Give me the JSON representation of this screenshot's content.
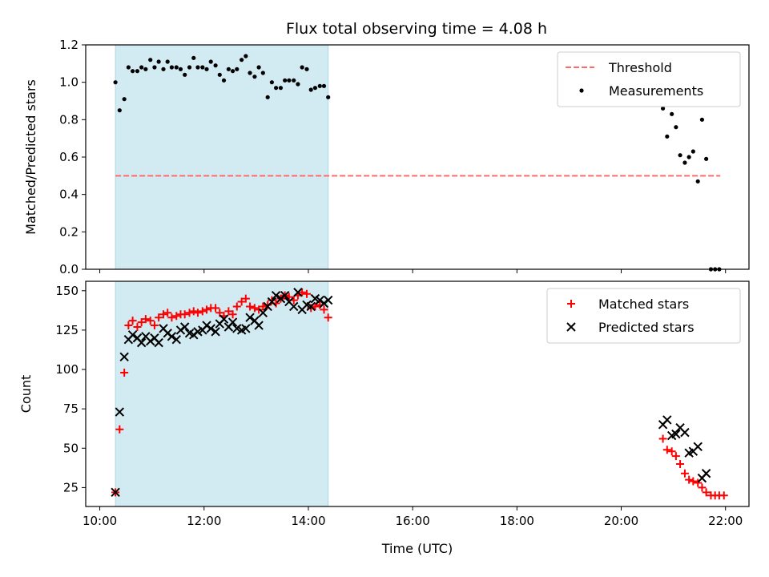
{
  "title": "Flux total observing time = 4.08 h",
  "colors": {
    "shade": "#add8e6",
    "threshold": "#ff6b6b",
    "measurement": "#000000",
    "matched": "#ff0000",
    "predicted": "#000000"
  },
  "chart_data": [
    {
      "type": "scatter",
      "panel": "top",
      "ylabel": "Matched/Predicted stars",
      "ylim": [
        0,
        1.2
      ],
      "yticks": [
        "0.0",
        "0.2",
        "0.4",
        "0.6",
        "0.8",
        "1.0",
        "1.2"
      ],
      "xlim": [
        9.73,
        22.45
      ],
      "shaded_interval": [
        10.3,
        14.38
      ],
      "legend": {
        "placement": "upper-right",
        "entries": [
          "Threshold",
          "Measurements"
        ]
      },
      "threshold": {
        "name": "Threshold",
        "y": 0.5,
        "x": [
          10.3,
          21.9
        ]
      },
      "series": [
        {
          "name": "Measurements",
          "x": [
            10.3,
            10.38,
            10.47,
            10.55,
            10.63,
            10.72,
            10.8,
            10.88,
            10.97,
            11.05,
            11.13,
            11.22,
            11.3,
            11.38,
            11.47,
            11.55,
            11.63,
            11.72,
            11.8,
            11.88,
            11.97,
            12.05,
            12.13,
            12.22,
            12.3,
            12.38,
            12.47,
            12.55,
            12.63,
            12.72,
            12.8,
            12.88,
            12.97,
            13.05,
            13.13,
            13.22,
            13.3,
            13.38,
            13.47,
            13.55,
            13.63,
            13.72,
            13.8,
            13.88,
            13.97,
            14.05,
            14.13,
            14.22,
            14.3,
            14.38,
            20.8,
            20.88,
            20.97,
            21.05,
            21.13,
            21.22,
            21.3,
            21.38,
            21.47,
            21.55,
            21.63,
            21.72,
            21.8,
            21.88
          ],
          "y": [
            1.0,
            0.85,
            0.91,
            1.08,
            1.06,
            1.06,
            1.08,
            1.07,
            1.12,
            1.08,
            1.11,
            1.07,
            1.11,
            1.08,
            1.08,
            1.07,
            1.04,
            1.08,
            1.13,
            1.08,
            1.08,
            1.07,
            1.11,
            1.09,
            1.04,
            1.01,
            1.07,
            1.06,
            1.07,
            1.12,
            1.14,
            1.05,
            1.03,
            1.08,
            1.05,
            0.92,
            1.0,
            0.97,
            0.97,
            1.01,
            1.01,
            1.01,
            0.99,
            1.08,
            1.07,
            0.96,
            0.97,
            0.98,
            0.98,
            0.92,
            0.86,
            0.71,
            0.83,
            0.76,
            0.61,
            0.57,
            0.6,
            0.63,
            0.47,
            0.8,
            0.59,
            0.0,
            0.0,
            0.0
          ]
        }
      ]
    },
    {
      "type": "scatter",
      "panel": "bottom",
      "xlabel": "Time (UTC)",
      "ylabel": "Count",
      "ylim": [
        13,
        156
      ],
      "yticks": [
        "25",
        "50",
        "75",
        "100",
        "125",
        "150"
      ],
      "xlim": [
        9.73,
        22.45
      ],
      "xticks": [
        "10:00",
        "12:00",
        "14:00",
        "16:00",
        "18:00",
        "20:00",
        "22:00"
      ],
      "shaded_interval": [
        10.3,
        14.38
      ],
      "legend": {
        "placement": "upper-right",
        "entries": [
          "Matched stars",
          "Predicted stars"
        ]
      },
      "series": [
        {
          "name": "Matched stars",
          "x": [
            10.3,
            10.38,
            10.47,
            10.55,
            10.63,
            10.72,
            10.8,
            10.88,
            10.97,
            11.05,
            11.13,
            11.22,
            11.3,
            11.38,
            11.47,
            11.55,
            11.63,
            11.72,
            11.8,
            11.88,
            11.97,
            12.05,
            12.13,
            12.22,
            12.3,
            12.38,
            12.47,
            12.55,
            12.63,
            12.72,
            12.8,
            12.88,
            12.97,
            13.05,
            13.13,
            13.22,
            13.3,
            13.38,
            13.47,
            13.55,
            13.63,
            13.72,
            13.8,
            13.88,
            13.97,
            14.05,
            14.13,
            14.22,
            14.3,
            14.38,
            20.8,
            20.88,
            20.97,
            21.05,
            21.13,
            21.22,
            21.3,
            21.38,
            21.47,
            21.55,
            21.63,
            21.72,
            21.8,
            21.88,
            21.97
          ],
          "y": [
            22,
            62,
            98,
            128,
            131,
            127,
            130,
            132,
            131,
            128,
            133,
            135,
            136,
            133,
            134,
            135,
            135,
            136,
            137,
            136,
            137,
            138,
            139,
            139,
            136,
            134,
            137,
            135,
            140,
            143,
            145,
            140,
            139,
            138,
            140,
            141,
            144,
            142,
            145,
            147,
            146,
            144,
            147,
            149,
            148,
            139,
            140,
            141,
            138,
            133,
            56,
            49,
            48,
            45,
            40,
            34,
            30,
            29,
            28,
            25,
            22,
            20,
            20,
            20,
            20
          ]
        },
        {
          "name": "Predicted stars",
          "x": [
            10.3,
            10.38,
            10.47,
            10.55,
            10.63,
            10.72,
            10.8,
            10.88,
            10.97,
            11.05,
            11.13,
            11.22,
            11.3,
            11.38,
            11.47,
            11.55,
            11.63,
            11.72,
            11.8,
            11.88,
            11.97,
            12.05,
            12.13,
            12.22,
            12.3,
            12.38,
            12.47,
            12.55,
            12.63,
            12.72,
            12.8,
            12.88,
            12.97,
            13.05,
            13.13,
            13.22,
            13.3,
            13.38,
            13.47,
            13.55,
            13.63,
            13.72,
            13.8,
            13.88,
            13.97,
            14.05,
            14.13,
            14.22,
            14.3,
            14.38,
            20.8,
            20.88,
            20.97,
            21.05,
            21.13,
            21.22,
            21.3,
            21.38,
            21.47,
            21.55,
            21.63
          ],
          "y": [
            22,
            73,
            108,
            119,
            122,
            120,
            117,
            121,
            118,
            120,
            117,
            126,
            123,
            121,
            119,
            125,
            127,
            123,
            122,
            124,
            125,
            128,
            126,
            124,
            129,
            132,
            127,
            130,
            126,
            125,
            126,
            133,
            131,
            128,
            136,
            140,
            143,
            147,
            145,
            147,
            143,
            140,
            149,
            138,
            141,
            140,
            145,
            144,
            142,
            144,
            65,
            68,
            58,
            59,
            63,
            60,
            47,
            48,
            51,
            31,
            34
          ]
        }
      ]
    }
  ]
}
